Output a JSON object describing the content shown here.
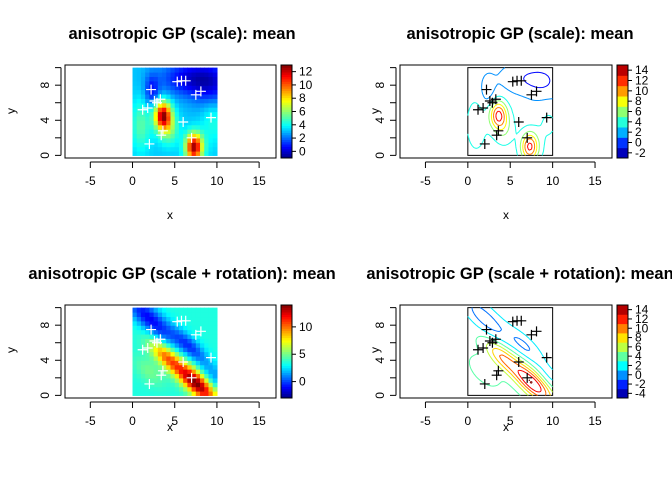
{
  "panels": [
    {
      "title": "anisotropic GP (scale): mean",
      "kind": "image",
      "xlabel": "x",
      "ylabel": "y",
      "xticks": [
        "-5",
        "0",
        "5",
        "10",
        "15"
      ],
      "yticks": [
        "0",
        "4",
        "8"
      ],
      "legend_ticks": [
        "0",
        "2",
        "4",
        "6",
        "8",
        "10",
        "12"
      ]
    },
    {
      "title": "anisotropic GP (scale): mean",
      "kind": "contour",
      "xlabel": "x",
      "ylabel": "y",
      "xticks": [
        "-5",
        "0",
        "5",
        "10",
        "15"
      ],
      "yticks": [
        "0",
        "4",
        "8"
      ],
      "legend_ticks": [
        "-2",
        "0",
        "2",
        "4",
        "6",
        "8",
        "10",
        "12",
        "14"
      ]
    },
    {
      "title": "anisotropic GP (scale + rotation): mean",
      "kind": "image",
      "xlabel": "x",
      "ylabel": "y",
      "xticks": [
        "-5",
        "0",
        "5",
        "10",
        "15"
      ],
      "yticks": [
        "0",
        "4",
        "8"
      ],
      "legend_ticks": [
        "0",
        "5",
        "10"
      ]
    },
    {
      "title": "anisotropic GP (scale + rotation): mean",
      "kind": "contour",
      "xlabel": "x",
      "ylabel": "y",
      "xticks": [
        "-5",
        "0",
        "5",
        "10",
        "15"
      ],
      "yticks": [
        "0",
        "4",
        "8"
      ],
      "legend_ticks": [
        "-4",
        "-2",
        "0",
        "2",
        "4",
        "6",
        "8",
        "10",
        "12",
        "14"
      ]
    }
  ],
  "chart_data": [
    {
      "type": "heatmap",
      "title": "anisotropic GP (scale): mean",
      "xlabel": "x",
      "ylabel": "y",
      "xlim": [
        -8,
        17
      ],
      "ylim": [
        -0.3,
        10.3
      ],
      "data_range": [
        0,
        10
      ],
      "legend_range": [
        -1,
        13
      ],
      "colorscale": "blue-cyan-yellow-red (jet)",
      "points": [
        [
          2.0,
          1.3
        ],
        [
          1.2,
          5.2
        ],
        [
          1.8,
          5.4
        ],
        [
          2.2,
          7.5
        ],
        [
          2.6,
          6.2
        ],
        [
          2.9,
          6.0
        ],
        [
          3.3,
          6.4
        ],
        [
          3.6,
          2.8
        ],
        [
          3.4,
          2.3
        ],
        [
          5.3,
          8.4
        ],
        [
          5.8,
          8.5
        ],
        [
          6.3,
          8.5
        ],
        [
          6.0,
          3.8
        ],
        [
          7.0,
          2.0
        ],
        [
          7.5,
          6.9
        ],
        [
          8.1,
          7.3
        ],
        [
          9.3,
          4.3
        ]
      ],
      "grid": false
    },
    {
      "type": "contour",
      "title": "anisotropic GP (scale): mean",
      "xlabel": "x",
      "ylabel": "y",
      "xlim": [
        -8,
        17
      ],
      "ylim": [
        -0.3,
        10.3
      ],
      "data_range": [
        0,
        10
      ],
      "levels": [
        -2,
        0,
        2,
        4,
        6,
        8,
        10,
        12,
        14
      ],
      "points": [
        [
          2.0,
          1.3
        ],
        [
          1.2,
          5.2
        ],
        [
          1.8,
          5.4
        ],
        [
          2.2,
          7.5
        ],
        [
          2.6,
          6.2
        ],
        [
          2.9,
          6.0
        ],
        [
          3.3,
          6.4
        ],
        [
          3.6,
          2.8
        ],
        [
          3.4,
          2.3
        ],
        [
          5.3,
          8.4
        ],
        [
          5.8,
          8.5
        ],
        [
          6.3,
          8.5
        ],
        [
          6.0,
          3.8
        ],
        [
          7.0,
          2.0
        ],
        [
          7.5,
          6.9
        ],
        [
          8.1,
          7.3
        ],
        [
          9.3,
          4.3
        ]
      ],
      "grid": false
    },
    {
      "type": "heatmap",
      "title": "anisotropic GP (scale + rotation): mean",
      "xlabel": "x",
      "ylabel": "y",
      "xlim": [
        -8,
        17
      ],
      "ylim": [
        -0.3,
        10.3
      ],
      "data_range": [
        0,
        10
      ],
      "legend_range": [
        -3,
        14
      ],
      "colorscale": "blue-cyan-yellow-red (jet)",
      "points": [
        [
          2.0,
          1.3
        ],
        [
          1.2,
          5.2
        ],
        [
          1.8,
          5.4
        ],
        [
          2.2,
          7.5
        ],
        [
          2.6,
          6.2
        ],
        [
          2.9,
          6.0
        ],
        [
          3.3,
          6.4
        ],
        [
          3.6,
          2.8
        ],
        [
          3.4,
          2.3
        ],
        [
          5.3,
          8.4
        ],
        [
          5.8,
          8.5
        ],
        [
          6.3,
          8.5
        ],
        [
          6.0,
          3.8
        ],
        [
          7.0,
          2.0
        ],
        [
          7.5,
          6.9
        ],
        [
          8.1,
          7.3
        ],
        [
          9.3,
          4.3
        ]
      ],
      "grid": false
    },
    {
      "type": "contour",
      "title": "anisotropic GP (scale + rotation): mean",
      "xlabel": "x",
      "ylabel": "y",
      "xlim": [
        -8,
        17
      ],
      "ylim": [
        -0.3,
        10.3
      ],
      "data_range": [
        0,
        10
      ],
      "levels": [
        -4,
        -2,
        0,
        2,
        4,
        6,
        8,
        10,
        12,
        14
      ],
      "points": [
        [
          2.0,
          1.3
        ],
        [
          1.2,
          5.2
        ],
        [
          1.8,
          5.4
        ],
        [
          2.2,
          7.5
        ],
        [
          2.6,
          6.2
        ],
        [
          2.9,
          6.0
        ],
        [
          3.3,
          6.4
        ],
        [
          3.6,
          2.8
        ],
        [
          3.4,
          2.3
        ],
        [
          5.3,
          8.4
        ],
        [
          5.8,
          8.5
        ],
        [
          6.3,
          8.5
        ],
        [
          6.0,
          3.8
        ],
        [
          7.0,
          2.0
        ],
        [
          7.5,
          6.9
        ],
        [
          8.1,
          7.3
        ],
        [
          9.3,
          4.3
        ]
      ],
      "grid": false
    }
  ]
}
